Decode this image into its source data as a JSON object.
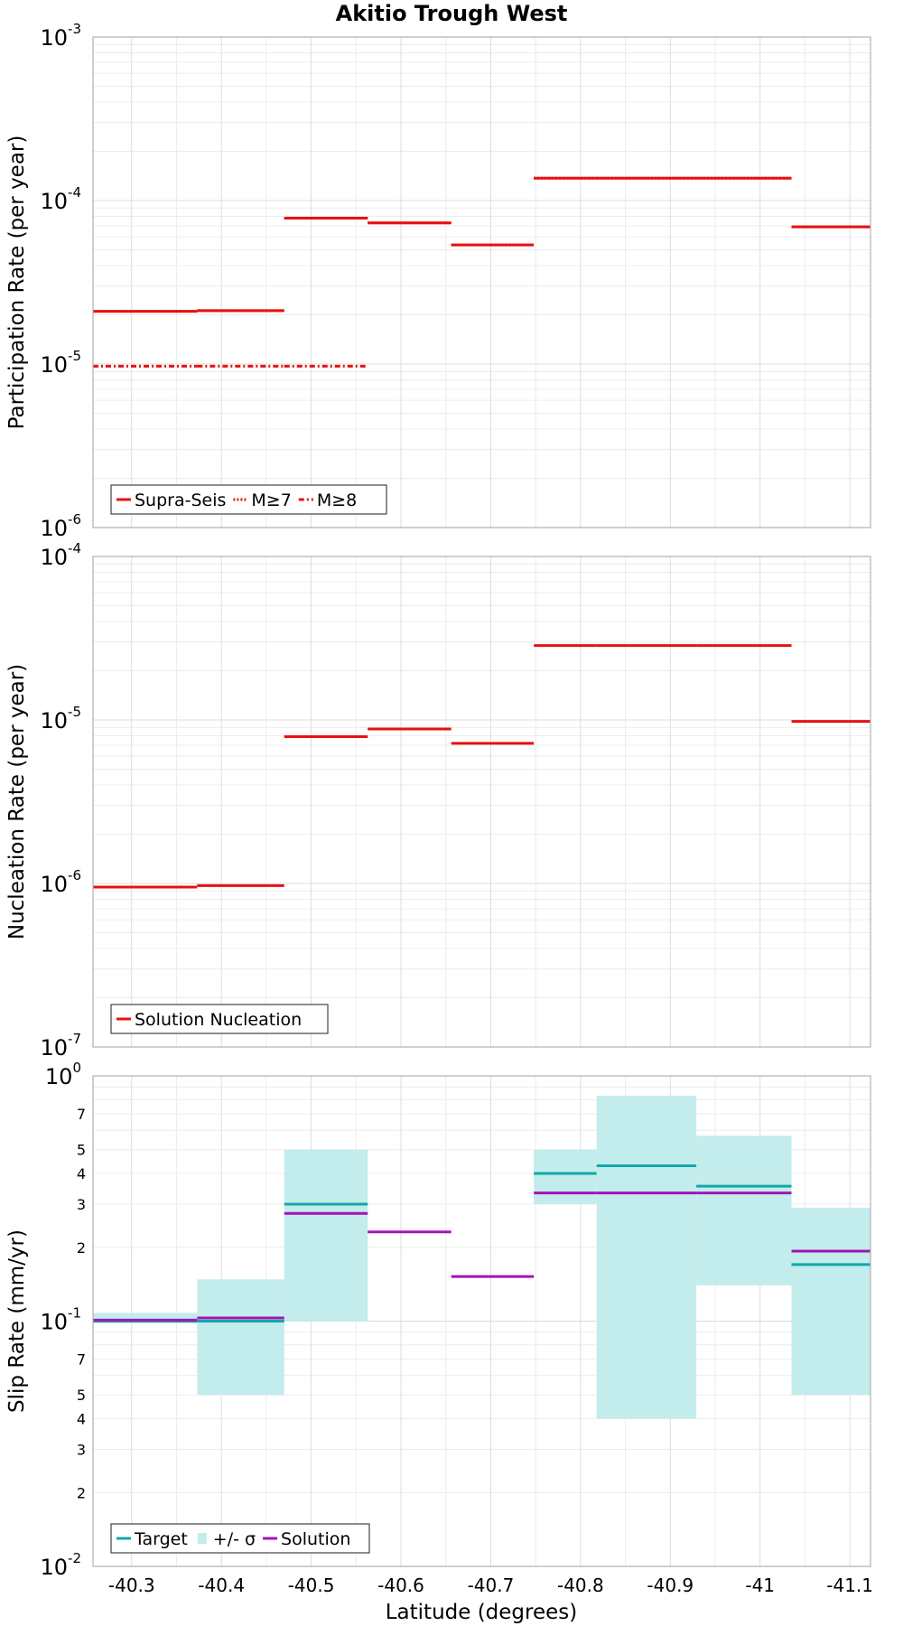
{
  "figure": {
    "title": "Akitio Trough West",
    "xlabel": "Latitude (degrees)"
  },
  "chart_data": [
    {
      "type": "line",
      "ylabel": "Participation Rate (per year)",
      "yscale": "log",
      "ylim": [
        1e-06,
        0.001
      ],
      "xlim": [
        -40.257,
        -41.123
      ],
      "x_reversed": true,
      "grid": true,
      "legend": {
        "position": "bottom-left"
      },
      "series": [
        {
          "name": "Supra-Seis",
          "color": "#e8110f",
          "dash": "solid",
          "segments": [
            {
              "x": [
                -40.257,
                -40.373
              ],
              "y": 2.1e-05
            },
            {
              "x": [
                -40.373,
                -40.47
              ],
              "y": 2.12e-05
            },
            {
              "x": [
                -40.47,
                -40.563
              ],
              "y": 7.8e-05
            },
            {
              "x": [
                -40.563,
                -40.656
              ],
              "y": 7.3e-05
            },
            {
              "x": [
                -40.656,
                -40.748
              ],
              "y": 5.35e-05
            },
            {
              "x": [
                -40.748,
                -40.818
              ],
              "y": 0.000137
            },
            {
              "x": [
                -40.818,
                -40.929
              ],
              "y": 0.000137
            },
            {
              "x": [
                -40.929,
                -41.035
              ],
              "y": 0.000137
            },
            {
              "x": [
                -41.035,
                -41.123
              ],
              "y": 6.9e-05
            }
          ]
        },
        {
          "name": "M≥7",
          "color": "#e8110f",
          "dash": "dotted",
          "segments": [
            {
              "x": [
                -40.257,
                -40.373
              ],
              "y": 2.1e-05
            },
            {
              "x": [
                -40.373,
                -40.47
              ],
              "y": 2.12e-05
            },
            {
              "x": [
                -40.47,
                -40.563
              ],
              "y": 7.8e-05
            },
            {
              "x": [
                -40.563,
                -40.656
              ],
              "y": 7.3e-05
            },
            {
              "x": [
                -40.656,
                -40.748
              ],
              "y": 5.35e-05
            },
            {
              "x": [
                -40.748,
                -40.818
              ],
              "y": 0.000137
            },
            {
              "x": [
                -40.818,
                -40.929
              ],
              "y": 0.000137
            },
            {
              "x": [
                -40.929,
                -41.035
              ],
              "y": 0.000137
            },
            {
              "x": [
                -41.035,
                -41.123
              ],
              "y": 6.9e-05
            }
          ]
        },
        {
          "name": "M≥8",
          "color": "#e8110f",
          "dash": "dashdot",
          "segments": [
            {
              "x": [
                -40.257,
                -40.373
              ],
              "y": 9.7e-06
            },
            {
              "x": [
                -40.373,
                -40.47
              ],
              "y": 9.7e-06
            },
            {
              "x": [
                -40.47,
                -40.563
              ],
              "y": 9.7e-06
            }
          ]
        }
      ]
    },
    {
      "type": "line",
      "ylabel": "Nucleation Rate (per year)",
      "yscale": "log",
      "ylim": [
        1e-07,
        0.0001
      ],
      "xlim": [
        -40.257,
        -41.123
      ],
      "x_reversed": true,
      "grid": true,
      "legend": {
        "position": "bottom-left"
      },
      "series": [
        {
          "name": "Solution Nucleation",
          "color": "#e8110f",
          "dash": "solid",
          "segments": [
            {
              "x": [
                -40.257,
                -40.373
              ],
              "y": 9.5e-07
            },
            {
              "x": [
                -40.373,
                -40.47
              ],
              "y": 9.7e-07
            },
            {
              "x": [
                -40.47,
                -40.563
              ],
              "y": 7.9e-06
            },
            {
              "x": [
                -40.563,
                -40.656
              ],
              "y": 8.8e-06
            },
            {
              "x": [
                -40.656,
                -40.748
              ],
              "y": 7.2e-06
            },
            {
              "x": [
                -40.748,
                -40.818
              ],
              "y": 2.85e-05
            },
            {
              "x": [
                -40.818,
                -40.929
              ],
              "y": 2.85e-05
            },
            {
              "x": [
                -40.929,
                -41.035
              ],
              "y": 2.85e-05
            },
            {
              "x": [
                -41.035,
                -41.123
              ],
              "y": 9.8e-06
            }
          ]
        }
      ]
    },
    {
      "type": "line",
      "ylabel": "Slip Rate (mm/yr)",
      "yscale": "log",
      "ylim": [
        0.01,
        1
      ],
      "xlim": [
        -40.257,
        -41.123
      ],
      "x_reversed": true,
      "xticks": [
        "-40.3",
        "-40.4",
        "-40.5",
        "-40.6",
        "-40.7",
        "-40.8",
        "-40.9",
        "-41",
        "-41.1"
      ],
      "grid": true,
      "legend": {
        "position": "bottom-left"
      },
      "bands": {
        "name": "+/- σ",
        "color": "#c3ecec",
        "boxes": [
          {
            "x": [
              -40.257,
              -40.373
            ],
            "low": 0.098,
            "high": 0.108
          },
          {
            "x": [
              -40.373,
              -40.47
            ],
            "low": 0.05,
            "high": 0.148
          },
          {
            "x": [
              -40.47,
              -40.563
            ],
            "low": 0.1,
            "high": 0.5
          },
          {
            "x": [
              -40.748,
              -40.818
            ],
            "low": 0.3,
            "high": 0.5
          },
          {
            "x": [
              -40.818,
              -40.929
            ],
            "low": 0.04,
            "high": 0.83
          },
          {
            "x": [
              -40.929,
              -41.035
            ],
            "low": 0.14,
            "high": 0.57
          },
          {
            "x": [
              -41.035,
              -41.123
            ],
            "low": 0.05,
            "high": 0.29
          }
        ]
      },
      "series": [
        {
          "name": "Target",
          "color": "#12a8a8",
          "dash": "solid",
          "segments": [
            {
              "x": [
                -40.257,
                -40.373
              ],
              "y": 0.1
            },
            {
              "x": [
                -40.373,
                -40.47
              ],
              "y": 0.1
            },
            {
              "x": [
                -40.47,
                -40.563
              ],
              "y": 0.3
            },
            {
              "x": [
                -40.748,
                -40.818
              ],
              "y": 0.4
            },
            {
              "x": [
                -40.818,
                -40.929
              ],
              "y": 0.43
            },
            {
              "x": [
                -40.929,
                -41.035
              ],
              "y": 0.355
            },
            {
              "x": [
                -41.035,
                -41.123
              ],
              "y": 0.17
            }
          ]
        },
        {
          "name": "Solution",
          "color": "#a314b8",
          "dash": "solid",
          "segments": [
            {
              "x": [
                -40.257,
                -40.373
              ],
              "y": 0.101
            },
            {
              "x": [
                -40.373,
                -40.47
              ],
              "y": 0.103
            },
            {
              "x": [
                -40.47,
                -40.563
              ],
              "y": 0.275
            },
            {
              "x": [
                -40.563,
                -40.656
              ],
              "y": 0.231
            },
            {
              "x": [
                -40.656,
                -40.748
              ],
              "y": 0.152
            },
            {
              "x": [
                -40.748,
                -40.818
              ],
              "y": 0.333
            },
            {
              "x": [
                -40.818,
                -40.929
              ],
              "y": 0.333
            },
            {
              "x": [
                -40.929,
                -41.035
              ],
              "y": 0.333
            },
            {
              "x": [
                -41.035,
                -41.123
              ],
              "y": 0.193
            }
          ]
        }
      ]
    }
  ]
}
